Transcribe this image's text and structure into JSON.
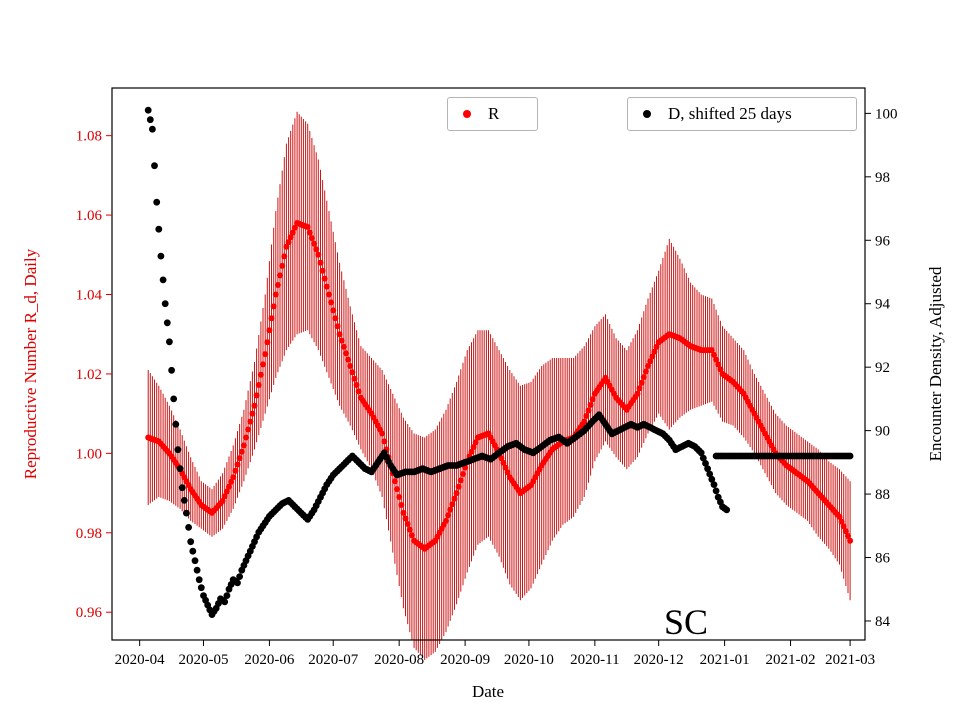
{
  "chart_data": {
    "type": "scatter",
    "title": "",
    "xlabel": "Date",
    "ylabel_left": "Reproductive Number R_d, Daily",
    "ylabel_right": "Encounter Density, Adjusted",
    "annotation": "SC",
    "grid": false,
    "x_ticks": [
      "2020-04",
      "2020-05",
      "2020-06",
      "2020-07",
      "2020-08",
      "2020-09",
      "2020-10",
      "2020-11",
      "2020-12",
      "2021-01",
      "2021-02",
      "2021-03"
    ],
    "y_ticks_left": [
      0.96,
      0.98,
      1.0,
      1.02,
      1.04,
      1.06,
      1.08
    ],
    "y_ticks_right": [
      84,
      86,
      88,
      90,
      92,
      94,
      96,
      98,
      100
    ],
    "xlim": [
      "2020-03-19",
      "2021-03-08"
    ],
    "ylim_left": [
      0.953,
      1.092
    ],
    "ylim_right": [
      83.4,
      100.8
    ],
    "colors": {
      "r_marker": "#ff0000",
      "r_error": "#cc1414",
      "d_marker": "#000000",
      "left_axis": "#dd0000",
      "right_axis": "#000000",
      "frame": "#000000",
      "legend_border": "#b4b4b4",
      "background": "#ffffff"
    },
    "legend": [
      {
        "label": "R",
        "marker": "circle",
        "marker_color": "#ff0000",
        "position": "upper center"
      },
      {
        "label": "D, shifted 25 days",
        "marker": "circle",
        "marker_color": "#000000",
        "position": "upper right"
      }
    ],
    "series": [
      {
        "name": "R",
        "axis": "left",
        "type": "scatter_with_errorbars",
        "color": "#ff0000",
        "error_color": "#cc1414",
        "points": [
          [
            "2020-04-05",
            1.004,
            0.017
          ],
          [
            "2020-04-10",
            1.003,
            0.014
          ],
          [
            "2020-04-15",
            1.0,
            0.012
          ],
          [
            "2020-04-20",
            0.996,
            0.01
          ],
          [
            "2020-04-25",
            0.991,
            0.008
          ],
          [
            "2020-04-30",
            0.987,
            0.006
          ],
          [
            "2020-05-05",
            0.985,
            0.006
          ],
          [
            "2020-05-10",
            0.988,
            0.007
          ],
          [
            "2020-05-15",
            0.994,
            0.008
          ],
          [
            "2020-05-20",
            1.002,
            0.009
          ],
          [
            "2020-05-25",
            1.012,
            0.011
          ],
          [
            "2020-05-30",
            1.025,
            0.015
          ],
          [
            "2020-06-04",
            1.04,
            0.021
          ],
          [
            "2020-06-09",
            1.052,
            0.026
          ],
          [
            "2020-06-14",
            1.058,
            0.028
          ],
          [
            "2020-06-19",
            1.057,
            0.026
          ],
          [
            "2020-06-24",
            1.05,
            0.024
          ],
          [
            "2020-06-29",
            1.04,
            0.021
          ],
          [
            "2020-07-04",
            1.03,
            0.018
          ],
          [
            "2020-07-09",
            1.022,
            0.015
          ],
          [
            "2020-07-14",
            1.014,
            0.013
          ],
          [
            "2020-07-19",
            1.01,
            0.014
          ],
          [
            "2020-07-24",
            1.005,
            0.016
          ],
          [
            "2020-07-29",
            0.995,
            0.02
          ],
          [
            "2020-08-03",
            0.985,
            0.024
          ],
          [
            "2020-08-08",
            0.978,
            0.027
          ],
          [
            "2020-08-13",
            0.976,
            0.028
          ],
          [
            "2020-08-18",
            0.978,
            0.028
          ],
          [
            "2020-08-23",
            0.983,
            0.028
          ],
          [
            "2020-08-28",
            0.99,
            0.028
          ],
          [
            "2020-09-02",
            0.998,
            0.028
          ],
          [
            "2020-09-07",
            1.004,
            0.027
          ],
          [
            "2020-09-12",
            1.005,
            0.026
          ],
          [
            "2020-09-17",
            1.0,
            0.026
          ],
          [
            "2020-09-22",
            0.994,
            0.027
          ],
          [
            "2020-09-27",
            0.99,
            0.027
          ],
          [
            "2020-10-02",
            0.992,
            0.026
          ],
          [
            "2020-10-07",
            0.997,
            0.025
          ],
          [
            "2020-10-12",
            1.001,
            0.023
          ],
          [
            "2020-10-17",
            1.003,
            0.021
          ],
          [
            "2020-10-22",
            1.004,
            0.02
          ],
          [
            "2020-10-27",
            1.008,
            0.019
          ],
          [
            "2020-11-01",
            1.015,
            0.017
          ],
          [
            "2020-11-06",
            1.019,
            0.016
          ],
          [
            "2020-11-11",
            1.014,
            0.015
          ],
          [
            "2020-11-16",
            1.011,
            0.015
          ],
          [
            "2020-11-21",
            1.015,
            0.016
          ],
          [
            "2020-11-26",
            1.022,
            0.017
          ],
          [
            "2020-12-01",
            1.028,
            0.018
          ],
          [
            "2020-12-06",
            1.03,
            0.024
          ],
          [
            "2020-12-11",
            1.029,
            0.02
          ],
          [
            "2020-12-16",
            1.027,
            0.016
          ],
          [
            "2020-12-21",
            1.026,
            0.014
          ],
          [
            "2020-12-26",
            1.026,
            0.013
          ],
          [
            "2020-12-31",
            1.02,
            0.012
          ],
          [
            "2021-01-05",
            1.018,
            0.011
          ],
          [
            "2021-01-10",
            1.015,
            0.011
          ],
          [
            "2021-01-15",
            1.01,
            0.01
          ],
          [
            "2021-01-20",
            1.005,
            0.01
          ],
          [
            "2021-01-25",
            1.0,
            0.01
          ],
          [
            "2021-01-30",
            0.997,
            0.01
          ],
          [
            "2021-02-04",
            0.995,
            0.01
          ],
          [
            "2021-02-09",
            0.993,
            0.01
          ],
          [
            "2021-02-14",
            0.99,
            0.011
          ],
          [
            "2021-02-19",
            0.987,
            0.011
          ],
          [
            "2021-02-24",
            0.984,
            0.012
          ],
          [
            "2021-03-01",
            0.978,
            0.015
          ]
        ]
      },
      {
        "name": "D, shifted 25 days",
        "axis": "right",
        "type": "scatter",
        "color": "#000000",
        "segments": [
          [
            [
              "2020-04-05",
              100.1
            ],
            [
              "2020-04-07",
              99.5
            ],
            [
              "2020-04-09",
              97.2
            ],
            [
              "2020-04-11",
              95.5
            ],
            [
              "2020-04-13",
              94.0
            ],
            [
              "2020-04-15",
              92.8
            ],
            [
              "2020-04-17",
              91.0
            ],
            [
              "2020-04-19",
              89.4
            ],
            [
              "2020-04-21",
              88.2
            ],
            [
              "2020-04-23",
              87.4
            ],
            [
              "2020-04-25",
              86.5
            ],
            [
              "2020-04-27",
              85.9
            ],
            [
              "2020-04-29",
              85.3
            ],
            [
              "2020-05-01",
              84.8
            ],
            [
              "2020-05-03",
              84.5
            ],
            [
              "2020-05-05",
              84.2
            ],
            [
              "2020-05-07",
              84.4
            ],
            [
              "2020-05-09",
              84.7
            ],
            [
              "2020-05-11",
              84.6
            ],
            [
              "2020-05-13",
              85.0
            ],
            [
              "2020-05-15",
              85.3
            ],
            [
              "2020-05-17",
              85.2
            ],
            [
              "2020-05-19",
              85.6
            ],
            [
              "2020-05-21",
              85.9
            ],
            [
              "2020-05-23",
              86.2
            ],
            [
              "2020-05-25",
              86.5
            ],
            [
              "2020-05-27",
              86.8
            ],
            [
              "2020-05-29",
              87.0
            ],
            [
              "2020-06-01",
              87.3
            ],
            [
              "2020-06-04",
              87.5
            ],
            [
              "2020-06-07",
              87.7
            ],
            [
              "2020-06-10",
              87.8
            ],
            [
              "2020-06-13",
              87.6
            ],
            [
              "2020-06-16",
              87.4
            ],
            [
              "2020-06-19",
              87.2
            ],
            [
              "2020-06-22",
              87.5
            ],
            [
              "2020-06-25",
              87.9
            ],
            [
              "2020-06-28",
              88.3
            ],
            [
              "2020-07-01",
              88.6
            ],
            [
              "2020-07-04",
              88.8
            ],
            [
              "2020-07-07",
              89.0
            ],
            [
              "2020-07-10",
              89.2
            ],
            [
              "2020-07-13",
              89.0
            ],
            [
              "2020-07-16",
              88.8
            ],
            [
              "2020-07-19",
              88.7
            ],
            [
              "2020-07-22",
              89.0
            ],
            [
              "2020-07-25",
              89.3
            ],
            [
              "2020-07-28",
              88.9
            ],
            [
              "2020-07-31",
              88.6
            ],
            [
              "2020-08-04",
              88.7
            ],
            [
              "2020-08-08",
              88.7
            ],
            [
              "2020-08-12",
              88.8
            ],
            [
              "2020-08-16",
              88.7
            ],
            [
              "2020-08-20",
              88.8
            ],
            [
              "2020-08-24",
              88.9
            ],
            [
              "2020-08-28",
              88.9
            ],
            [
              "2020-09-01",
              89.0
            ],
            [
              "2020-09-05",
              89.1
            ],
            [
              "2020-09-09",
              89.2
            ],
            [
              "2020-09-13",
              89.1
            ],
            [
              "2020-09-17",
              89.3
            ],
            [
              "2020-09-21",
              89.5
            ],
            [
              "2020-09-25",
              89.6
            ],
            [
              "2020-09-29",
              89.4
            ],
            [
              "2020-10-03",
              89.3
            ],
            [
              "2020-10-07",
              89.5
            ],
            [
              "2020-10-11",
              89.7
            ],
            [
              "2020-10-15",
              89.8
            ],
            [
              "2020-10-19",
              89.6
            ],
            [
              "2020-10-23",
              89.8
            ],
            [
              "2020-10-27",
              90.0
            ],
            [
              "2020-10-31",
              90.3
            ],
            [
              "2020-11-03",
              90.5
            ],
            [
              "2020-11-06",
              90.2
            ],
            [
              "2020-11-09",
              89.9
            ],
            [
              "2020-11-12",
              90.0
            ],
            [
              "2020-11-15",
              90.1
            ],
            [
              "2020-11-18",
              90.2
            ],
            [
              "2020-11-21",
              90.1
            ],
            [
              "2020-11-24",
              90.2
            ],
            [
              "2020-11-27",
              90.1
            ],
            [
              "2020-11-30",
              90.0
            ],
            [
              "2020-12-03",
              89.9
            ],
            [
              "2020-12-06",
              89.7
            ],
            [
              "2020-12-09",
              89.4
            ],
            [
              "2020-12-12",
              89.5
            ],
            [
              "2020-12-15",
              89.6
            ],
            [
              "2020-12-18",
              89.5
            ],
            [
              "2020-12-21",
              89.3
            ],
            [
              "2020-12-24",
              88.8
            ],
            [
              "2020-12-27",
              88.3
            ],
            [
              "2020-12-29",
              87.9
            ],
            [
              "2020-12-31",
              87.6
            ],
            [
              "2021-01-02",
              87.5
            ]
          ],
          [
            [
              "2020-12-28",
              89.2
            ],
            [
              "2021-03-01",
              89.2
            ]
          ]
        ]
      }
    ]
  }
}
